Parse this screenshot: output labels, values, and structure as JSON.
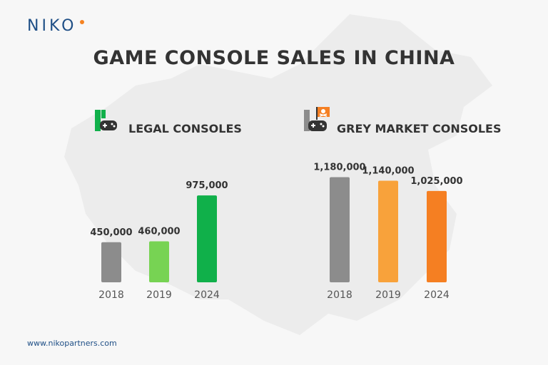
{
  "brand": {
    "logo_text": "NIKO",
    "logo_color": "#1f4f86",
    "accent": "#f58220"
  },
  "title": "GAME CONSOLE SALES IN CHINA",
  "footer": "www.nikopartners.com",
  "legal": {
    "label": "LEGAL CONSOLES",
    "icon": "legal-console-icon"
  },
  "grey": {
    "label": "GREY MARKET CONSOLES",
    "icon": "pirate-console-icon"
  },
  "chart_data": [
    {
      "type": "bar",
      "title": "LEGAL CONSOLES",
      "categories": [
        "2018",
        "2019",
        "2024"
      ],
      "values": [
        450000,
        460000,
        975000
      ],
      "value_labels": [
        "450,000",
        "460,000",
        "975,000"
      ],
      "colors": [
        "#8c8c8c",
        "#77d353",
        "#10b04a"
      ]
    },
    {
      "type": "bar",
      "title": "GREY MARKET CONSOLES",
      "categories": [
        "2018",
        "2019",
        "2024"
      ],
      "values": [
        1180000,
        1140000,
        1025000
      ],
      "value_labels": [
        "1,180,000",
        "1,140,000",
        "1,025,000"
      ],
      "colors": [
        "#8c8c8c",
        "#f8a23b",
        "#f57f22"
      ]
    }
  ]
}
